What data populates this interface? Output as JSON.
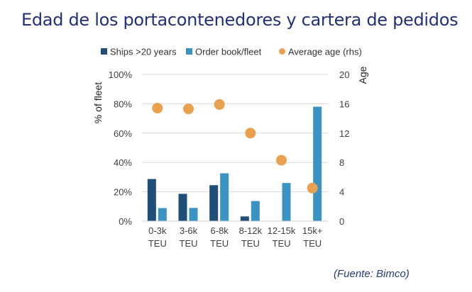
{
  "title": "Edad de los portacontenedores y cartera de pedidos",
  "source": "(Fuente: Bimco)",
  "chart_data": {
    "type": "bar",
    "categories": [
      "0-3k TEU",
      "3-6k TEU",
      "6-8k TEU",
      "8-12k TEU",
      "12-15k TEU",
      "15k+ TEU"
    ],
    "series": [
      {
        "name": "Ships >20 years",
        "kind": "bar",
        "axis": "left",
        "color": "#1f4e79",
        "values": [
          28.7,
          18.6,
          24.5,
          3.2,
          0,
          0
        ]
      },
      {
        "name": "Order book/fleet",
        "kind": "bar",
        "axis": "left",
        "color": "#3a93c3",
        "values": [
          8.9,
          9.0,
          32.6,
          13.7,
          26.0,
          78.0
        ]
      },
      {
        "name": "Average age (rhs)",
        "kind": "scatter",
        "axis": "right",
        "color": "#e9a04f",
        "values": [
          15.4,
          15.3,
          15.9,
          12.0,
          8.3,
          4.5
        ]
      }
    ],
    "ylabel": "% of fleet",
    "ylim": [
      0,
      100
    ],
    "yticks": [
      "0%",
      "20%",
      "40%",
      "60%",
      "80%",
      "100%"
    ],
    "y2label": "Age",
    "y2lim": [
      0,
      20
    ],
    "y2ticks": [
      "0",
      "4",
      "8",
      "12",
      "16",
      "20"
    ],
    "grid": true,
    "legend": "top"
  }
}
